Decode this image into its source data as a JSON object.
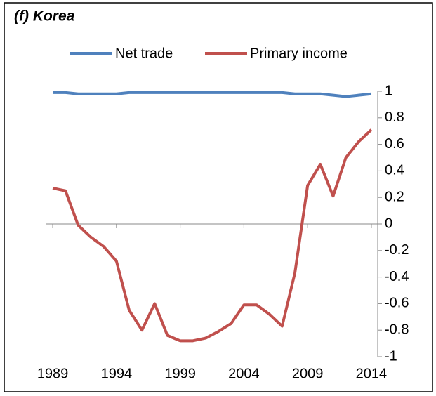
{
  "chart_data": {
    "type": "line",
    "title": "(f) Korea",
    "x": [
      1989,
      1990,
      1991,
      1992,
      1993,
      1994,
      1995,
      1996,
      1997,
      1998,
      1999,
      2000,
      2001,
      2002,
      2003,
      2004,
      2005,
      2006,
      2007,
      2008,
      2009,
      2010,
      2011,
      2012,
      2013,
      2014
    ],
    "series": [
      {
        "name": "Net trade",
        "color": "#4f81bd",
        "values": [
          0.99,
          0.99,
          0.98,
          0.98,
          0.98,
          0.98,
          0.99,
          0.99,
          0.99,
          0.99,
          0.99,
          0.99,
          0.99,
          0.99,
          0.99,
          0.99,
          0.99,
          0.99,
          0.99,
          0.98,
          0.98,
          0.98,
          0.97,
          0.96,
          0.97,
          0.98
        ]
      },
      {
        "name": "Primary income",
        "color": "#c0504d",
        "values": [
          0.27,
          0.25,
          -0.01,
          -0.1,
          -0.17,
          -0.28,
          -0.65,
          -0.8,
          -0.6,
          -0.84,
          -0.88,
          -0.88,
          -0.86,
          -0.81,
          -0.75,
          -0.61,
          -0.61,
          -0.68,
          -0.77,
          -0.37,
          0.29,
          0.45,
          0.21,
          0.5,
          0.62,
          0.71
        ]
      }
    ],
    "xlim": [
      1988.5,
      2014.5
    ],
    "xticks": [
      1989,
      1994,
      1999,
      2004,
      2009,
      2014
    ],
    "ylim": [
      -1,
      1
    ],
    "yticks": [
      1,
      0.8,
      0.6,
      0.4,
      0.2,
      0,
      -0.2,
      -0.4,
      -0.6,
      -0.8,
      -1
    ],
    "legend": "top"
  }
}
